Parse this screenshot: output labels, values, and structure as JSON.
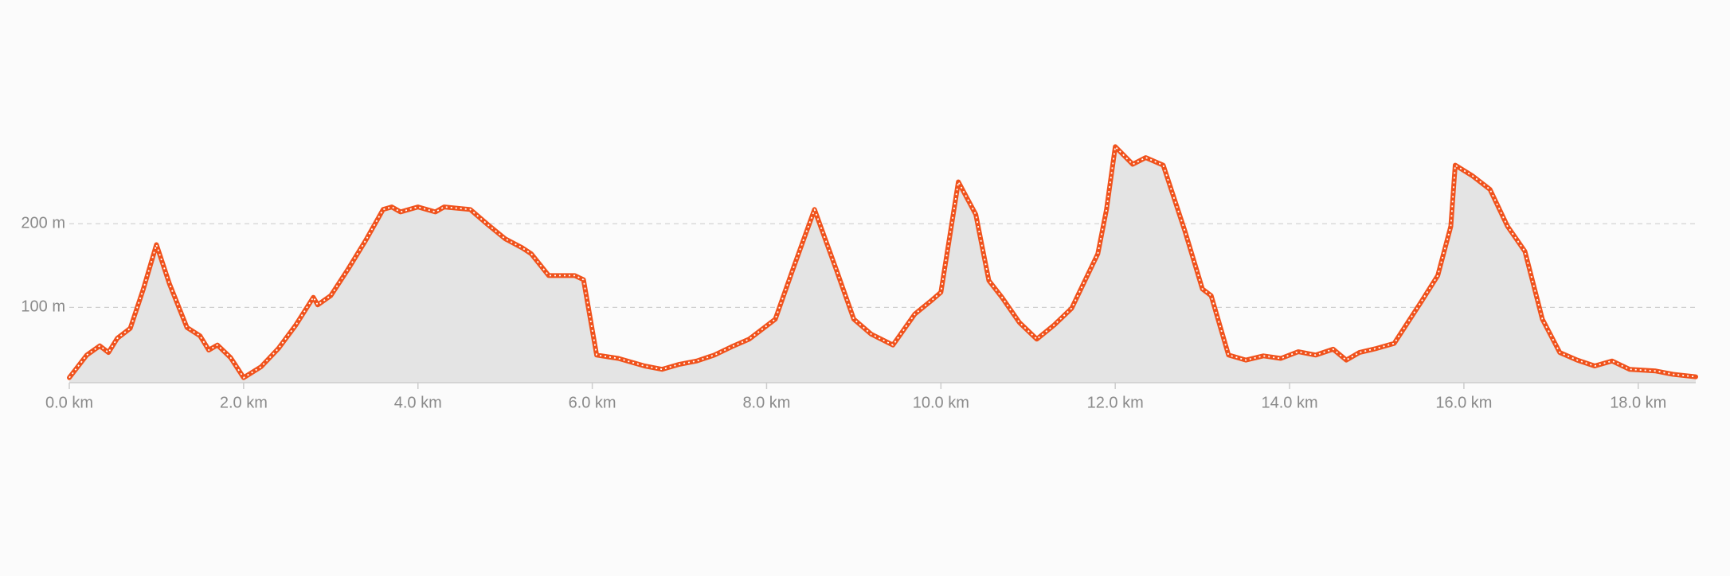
{
  "chart_data": {
    "type": "area",
    "x": [
      0,
      0.2,
      0.35,
      0.45,
      0.55,
      0.7,
      0.85,
      1.0,
      1.15,
      1.35,
      1.5,
      1.6,
      1.7,
      1.85,
      2.0,
      2.2,
      2.4,
      2.6,
      2.8,
      2.85,
      3.0,
      3.2,
      3.4,
      3.6,
      3.7,
      3.8,
      4.0,
      4.2,
      4.3,
      4.6,
      4.8,
      5.0,
      5.2,
      5.3,
      5.5,
      5.8,
      5.9,
      6.05,
      6.3,
      6.6,
      6.8,
      7.0,
      7.2,
      7.4,
      7.6,
      7.8,
      8.0,
      8.1,
      8.3,
      8.55,
      8.8,
      9.0,
      9.2,
      9.45,
      9.7,
      9.9,
      10.0,
      10.2,
      10.4,
      10.55,
      10.7,
      10.9,
      11.1,
      11.3,
      11.5,
      11.8,
      11.9,
      12.0,
      12.2,
      12.35,
      12.55,
      12.8,
      13.0,
      13.1,
      13.3,
      13.5,
      13.7,
      13.9,
      14.1,
      14.3,
      14.5,
      14.65,
      14.8,
      15.0,
      15.2,
      15.5,
      15.7,
      15.85,
      15.9,
      16.1,
      16.3,
      16.5,
      16.7,
      16.9,
      17.1,
      17.3,
      17.5,
      17.7,
      17.9,
      18.2,
      18.4,
      18.66
    ],
    "series": [
      {
        "color": "#f0521c",
        "values": [
          16,
          43,
          54,
          46,
          63,
          75,
          122,
          175,
          128,
          76,
          66,
          49,
          55,
          40,
          16,
          29,
          51,
          79,
          112,
          103,
          114,
          146,
          180,
          217,
          220,
          214,
          220,
          214,
          220,
          217,
          199,
          182,
          171,
          164,
          138,
          138,
          133,
          43,
          39,
          30,
          26,
          32,
          36,
          43,
          53,
          62,
          78,
          86,
          145,
          217,
          145,
          86,
          68,
          55,
          92,
          109,
          118,
          250,
          211,
          132,
          112,
          82,
          62,
          79,
          99,
          164,
          217,
          292,
          271,
          279,
          270,
          191,
          122,
          114,
          43,
          37,
          42,
          39,
          47,
          43,
          50,
          37,
          46,
          51,
          57,
          105,
          138,
          197,
          270,
          257,
          241,
          197,
          167,
          86,
          46,
          37,
          30,
          36,
          26,
          24,
          20,
          17
        ]
      }
    ],
    "fill_color": "#e4e4e4",
    "xlim": [
      0,
      18.66
    ],
    "xticks": [
      {
        "value": 0,
        "label": "0.0 km"
      },
      {
        "value": 2,
        "label": "2.0 km"
      },
      {
        "value": 4,
        "label": "4.0 km"
      },
      {
        "value": 6,
        "label": "6.0 km"
      },
      {
        "value": 8,
        "label": "8.0 km"
      },
      {
        "value": 10,
        "label": "10.0 km"
      },
      {
        "value": 12,
        "label": "12.0 km"
      },
      {
        "value": 14,
        "label": "14.0 km"
      },
      {
        "value": 16,
        "label": "16.0 km"
      },
      {
        "value": 18,
        "label": "18.0 km"
      }
    ],
    "ylim": [
      10,
      300
    ],
    "yticks": [
      {
        "value": 100,
        "label": "100 m"
      },
      {
        "value": 200,
        "label": "200 m"
      }
    ],
    "grid": true
  }
}
